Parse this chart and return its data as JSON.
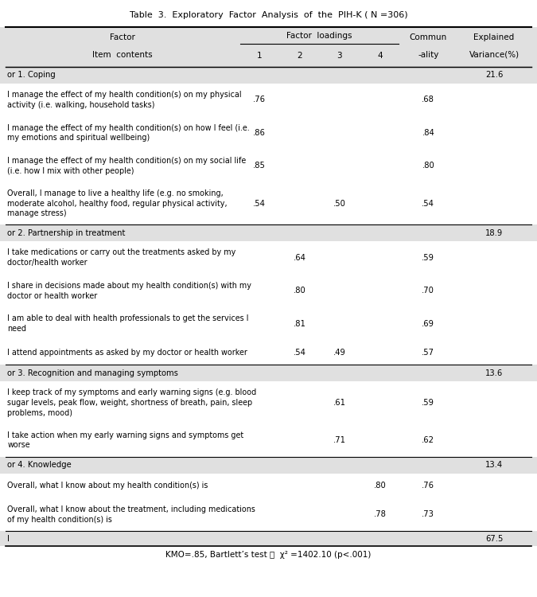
{
  "title": "Table  3.  Exploratory  Factor  Analysis  of  the  PIH-K ( N =306)",
  "footer": "KMO=.85, Bartlett’s test ：  χ² =1402.10 (p<.001)",
  "bg_header": "#e0e0e0",
  "bg_factor": "#e0e0e0",
  "rows": [
    {
      "type": "factor",
      "label": "or 1. Coping",
      "f1": "",
      "f2": "",
      "f3": "",
      "f4": "",
      "comm": "",
      "var": "21.6"
    },
    {
      "type": "item",
      "label": "I manage the effect of my health condition(s) on my physical\nactivity (i.e. walking, household tasks)",
      "f1": ".76",
      "f2": "",
      "f3": "",
      "f4": "",
      "comm": ".68",
      "var": ""
    },
    {
      "type": "item",
      "label": "I manage the effect of my health condition(s) on how I feel (i.e.\nmy emotions and spiritual wellbeing)",
      "f1": ".86",
      "f2": "",
      "f3": "",
      "f4": "",
      "comm": ".84",
      "var": ""
    },
    {
      "type": "item",
      "label": "I manage the effect of my health condition(s) on my social life\n(i.e. how I mix with other people)",
      "f1": ".85",
      "f2": "",
      "f3": "",
      "f4": "",
      "comm": ".80",
      "var": ""
    },
    {
      "type": "item",
      "label": "Overall, I manage to live a healthy life (e.g. no smoking,\nmoderate alcohol, healthy food, regular physical activity,\nmanage stress)",
      "f1": ".54",
      "f2": "",
      "f3": ".50",
      "f4": "",
      "comm": ".54",
      "var": ""
    },
    {
      "type": "factor",
      "label": "or 2. Partnership in treatment",
      "f1": "",
      "f2": "",
      "f3": "",
      "f4": "",
      "comm": "",
      "var": "18.9"
    },
    {
      "type": "item",
      "label": "I take medications or carry out the treatments asked by my\ndoctor/health worker",
      "f1": "",
      "f2": ".64",
      "f3": "",
      "f4": "",
      "comm": ".59",
      "var": ""
    },
    {
      "type": "item",
      "label": "I share in decisions made about my health condition(s) with my\ndoctor or health worker",
      "f1": "",
      "f2": ".80",
      "f3": "",
      "f4": "",
      "comm": ".70",
      "var": ""
    },
    {
      "type": "item",
      "label": "I am able to deal with health professionals to get the services I\nneed",
      "f1": "",
      "f2": ".81",
      "f3": "",
      "f4": "",
      "comm": ".69",
      "var": ""
    },
    {
      "type": "item",
      "label": "I attend appointments as asked by my doctor or health worker",
      "f1": "",
      "f2": ".54",
      "f3": ".49",
      "f4": "",
      "comm": ".57",
      "var": ""
    },
    {
      "type": "factor",
      "label": "or 3. Recognition and managing symptoms",
      "f1": "",
      "f2": "",
      "f3": "",
      "f4": "",
      "comm": "",
      "var": "13.6"
    },
    {
      "type": "item",
      "label": "I keep track of my symptoms and early warning signs (e.g. blood\nsugar levels, peak flow, weight, shortness of breath, pain, sleep\nproblems, mood)",
      "f1": "",
      "f2": "",
      "f3": ".61",
      "f4": "",
      "comm": ".59",
      "var": ""
    },
    {
      "type": "item",
      "label": "I take action when my early warning signs and symptoms get\nworse",
      "f1": "",
      "f2": "",
      "f3": ".71",
      "f4": "",
      "comm": ".62",
      "var": ""
    },
    {
      "type": "factor",
      "label": "or 4. Knowledge",
      "f1": "",
      "f2": "",
      "f3": "",
      "f4": "",
      "comm": "",
      "var": "13.4"
    },
    {
      "type": "item",
      "label": "Overall, what I know about my health condition(s) is",
      "f1": "",
      "f2": "",
      "f3": "",
      "f4": ".80",
      "comm": ".76",
      "var": ""
    },
    {
      "type": "item",
      "label": "Overall, what I know about the treatment, including medications\nof my health condition(s) is",
      "f1": "",
      "f2": "",
      "f3": "",
      "f4": ".78",
      "comm": ".73",
      "var": ""
    },
    {
      "type": "total",
      "label": "l",
      "f1": "",
      "f2": "",
      "f3": "",
      "f4": "",
      "comm": "",
      "var": "67.5"
    }
  ]
}
